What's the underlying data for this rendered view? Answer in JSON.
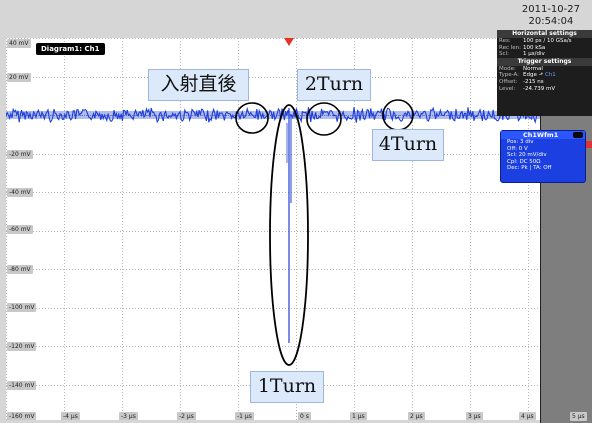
{
  "datetime": {
    "date": "2011-10-27",
    "time": "20:54:04"
  },
  "diagram_tab": "Diagram1: Ch1",
  "y_labels": [
    "40 mV",
    "20 mV",
    "-20 mV",
    "-40 mV",
    "-60 mV",
    "-80 mV",
    "-100 mV",
    "-120 mV",
    "-140 mV",
    "-160 mV"
  ],
  "x_labels": [
    "-4 µs",
    "-3 µs",
    "-2 µs",
    "-1 µs",
    "0 s",
    "1 µs",
    "2 µs",
    "3 µs",
    "4 µs",
    "5 µs"
  ],
  "horizontal": {
    "title": "Horizontal settings",
    "rows": [
      {
        "k": "Res:",
        "v": "100 ps / 10 GSa/s"
      },
      {
        "k": "Rec len:",
        "v": "100 kSa"
      },
      {
        "k": "Scl:",
        "v": "1 µs/div"
      }
    ]
  },
  "trigger": {
    "title": "Trigger settings",
    "rows": [
      {
        "k": "Mode:",
        "v": "Normal"
      },
      {
        "k": "Type-A:",
        "v": "Edge",
        "extra": "Ch1"
      },
      {
        "k": "Offset:",
        "v": "-215 ns"
      },
      {
        "k": "Level:",
        "v": "-24.739 mV"
      }
    ]
  },
  "channel": {
    "title": "Ch1Wfm1",
    "rows": [
      "Pos: 3 div",
      "Off: 0 V",
      "Scl: 20 mV/div",
      "Cpl: DC 50Ω",
      "Dec: Pk | TA: Off"
    ]
  },
  "annotations": {
    "just_after": "入射直後",
    "turn1": "1Turn",
    "turn2": "2Turn",
    "turn4": "4Turn"
  },
  "colors": {
    "trace": "#1f3fd6",
    "grid": "#b5b5b5",
    "trigger": "#e63222"
  }
}
